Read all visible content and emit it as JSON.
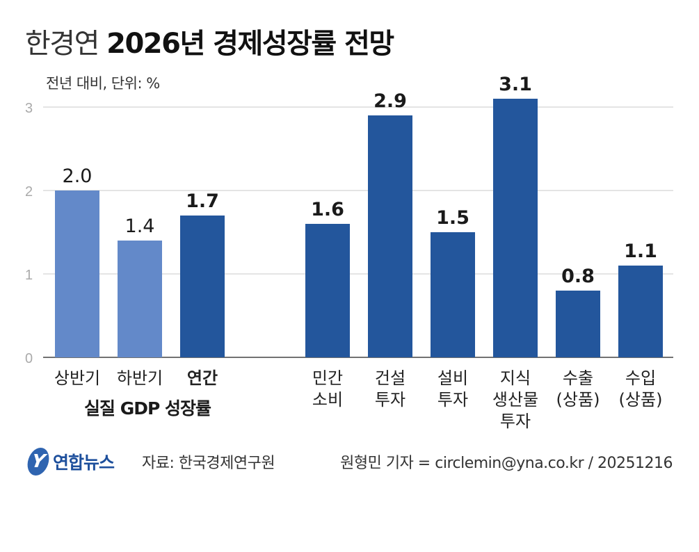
{
  "header": {
    "title_light": "한경연",
    "title_bold": "2026년 경제성장률 전망",
    "unit": "전년 대비, 단위: %"
  },
  "colors": {
    "light_bar": "#6389c9",
    "dark_bar": "#23569c",
    "grid": "#c8c8c8",
    "axis": "#444444",
    "tick": "#aaaaaa"
  },
  "chart_data": {
    "type": "bar",
    "ylim": [
      0,
      3
    ],
    "yticks": [
      "0",
      "1",
      "2",
      "3"
    ],
    "grid": true,
    "group_label": "실질 GDP 성장률",
    "categories": [
      [
        "상반기"
      ],
      [
        "하반기"
      ],
      [
        "연간"
      ],
      [
        "민간",
        "소비"
      ],
      [
        "건설",
        "투자"
      ],
      [
        "설비",
        "투자"
      ],
      [
        "지식",
        "생산물",
        "투자"
      ],
      [
        "수출",
        "(상품)"
      ],
      [
        "수입",
        "(상품)"
      ]
    ],
    "values": [
      2.0,
      1.4,
      1.7,
      1.6,
      2.9,
      1.5,
      3.1,
      0.8,
      1.1
    ],
    "labels": [
      "2.0",
      "1.4",
      "1.7",
      "1.6",
      "2.9",
      "1.5",
      "3.1",
      "0.8",
      "1.1"
    ],
    "bar_style": [
      "light",
      "light",
      "dark",
      "dark",
      "dark",
      "dark",
      "dark",
      "dark",
      "dark"
    ],
    "bold_category": [
      false,
      false,
      true,
      false,
      false,
      false,
      false,
      false,
      false
    ],
    "bold_label": [
      false,
      false,
      true,
      true,
      true,
      true,
      true,
      true,
      true
    ]
  },
  "footer": {
    "logo_mark": "Y",
    "logo_text": "연합뉴스",
    "source": "자료: 한국경제연구원",
    "credit": "원형민 기자 = circlemin@yna.co.kr / 20251216"
  }
}
